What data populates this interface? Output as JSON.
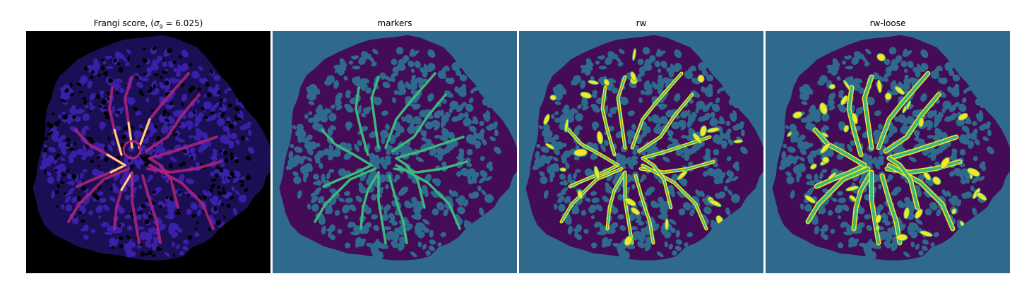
{
  "figure": {
    "panels": [
      {
        "title": "Frangi score, (σ₉ = 6.025)",
        "title_prefix": "Frangi score, (",
        "sigma_symbol": "σ",
        "sigma_sub": "9",
        "sigma_value": " = 6.025)",
        "colormap": "magma-like"
      },
      {
        "title": "markers",
        "colormap": "viridis-like"
      },
      {
        "title": "rw",
        "colormap": "viridis-like"
      },
      {
        "title": "rw-loose",
        "colormap": "viridis-like"
      }
    ]
  },
  "colors": {
    "frangi_bg": "#000000",
    "frangi_tissue": "#1a0f55",
    "frangi_pore": "#3a1fa8",
    "frangi_vessel_low": "#a8237a",
    "frangi_vessel_high": "#fbd57a",
    "seg_bg": "#2f6a8c",
    "seg_dark": "#440b57",
    "seg_mid": "#2f6a8c",
    "seg_green": "#3cb97a",
    "seg_yellow": "#f8e622"
  }
}
